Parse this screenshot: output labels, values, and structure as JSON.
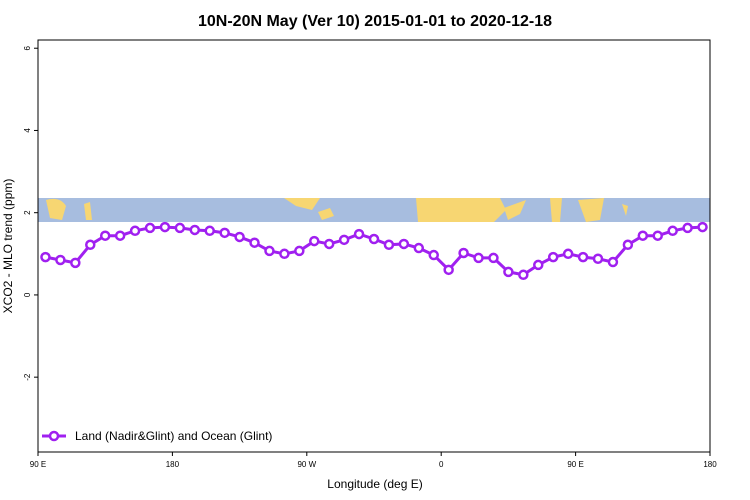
{
  "chart_data": {
    "type": "line",
    "title": "10N-20N May (Ver 10)   2015-01-01 to 2020-12-18",
    "x_label": "Longitude (deg E)",
    "y_label": "XCO2 - MLO trend (ppm)",
    "x": [
      95,
      105,
      115,
      125,
      135,
      145,
      155,
      165,
      175,
      185,
      195,
      205,
      215,
      225,
      235,
      245,
      255,
      265,
      275,
      285,
      295,
      305,
      315,
      325,
      335,
      345,
      355,
      365,
      375,
      385,
      395,
      405,
      415,
      425,
      435,
      445,
      455,
      465,
      475,
      485,
      495,
      505,
      515,
      525,
      535
    ],
    "series": [
      {
        "name": "Land (Nadir&Glint) and Ocean (Glint)",
        "color": "#a020f0",
        "values": [
          0.92,
          0.85,
          0.78,
          1.22,
          1.44,
          1.44,
          1.56,
          1.63,
          1.65,
          1.63,
          1.58,
          1.56,
          1.51,
          1.41,
          1.27,
          1.07,
          1.0,
          1.07,
          1.31,
          1.24,
          1.34,
          1.48,
          1.36,
          1.22,
          1.24,
          1.14,
          0.97,
          0.61,
          1.02,
          0.9,
          0.9,
          0.56,
          0.49,
          0.73,
          0.92,
          1.0,
          0.92,
          0.88,
          0.8,
          1.22,
          1.44,
          1.44,
          1.56,
          1.63,
          1.65
        ]
      }
    ],
    "xlim": [
      90,
      540
    ],
    "xticks": [
      {
        "value": 90,
        "label": "90 E"
      },
      180,
      {
        "value": 270,
        "label": "90 W"
      },
      {
        "value": 360,
        "label": "0"
      },
      {
        "value": 450,
        "label": "90 E"
      },
      {
        "value": 540,
        "label": "180"
      }
    ],
    "ylim": [
      -3.82,
      6.2
    ],
    "yticks": [
      -2,
      0,
      2,
      4,
      6
    ],
    "legend": "bottom-left"
  }
}
